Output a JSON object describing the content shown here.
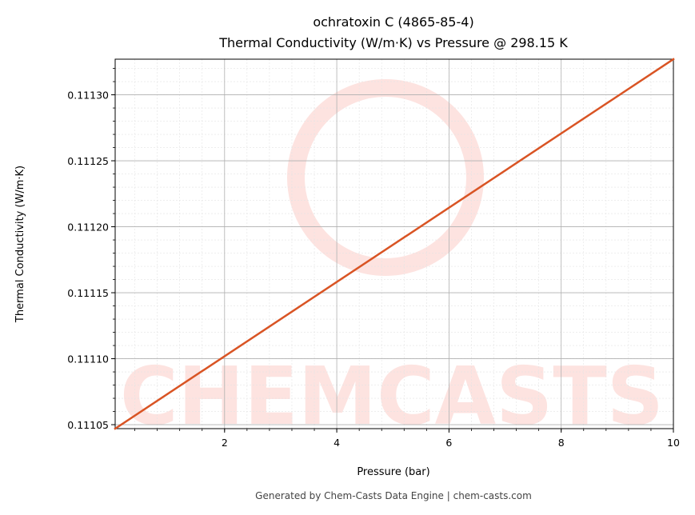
{
  "chart_data": {
    "type": "line",
    "title_lines": [
      "ochratoxin C (4865-85-4)",
      "Thermal Conductivity (W/m·K) vs Pressure @ 298.15 K"
    ],
    "xlabel": "Pressure (bar)",
    "ylabel": "Thermal Conductivity (W/m·K)",
    "xlim": [
      0.05,
      10
    ],
    "ylim": [
      0.111047,
      0.111327
    ],
    "x_ticks": [
      2,
      4,
      6,
      8,
      10
    ],
    "x_tick_labels": [
      "2",
      "4",
      "6",
      "8",
      "10"
    ],
    "y_ticks": [
      0.11105,
      0.1111,
      0.11115,
      0.1112,
      0.11125,
      0.1113
    ],
    "y_tick_labels": [
      "0.11105",
      "0.11110",
      "0.11115",
      "0.11120",
      "0.11125",
      "0.11130"
    ],
    "grid": true,
    "series": [
      {
        "color": "#d95424",
        "x": [
          0.05,
          10
        ],
        "y": [
          0.111047,
          0.111327
        ]
      }
    ]
  },
  "watermark": {
    "text": "CHEMCASTS",
    "color": "#fde3e0"
  },
  "footer": "Generated by Chem-Casts Data Engine | chem-casts.com"
}
